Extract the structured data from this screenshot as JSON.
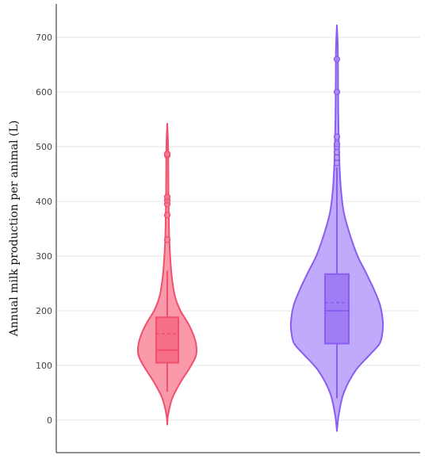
{
  "chart_data": {
    "type": "violin",
    "title": "",
    "xlabel": "",
    "ylabel": "Annual milk production per animal (L)",
    "ylim": [
      -30,
      760
    ],
    "yticks": [
      0,
      100,
      200,
      300,
      400,
      500,
      600,
      700
    ],
    "grid": true,
    "legend": "none",
    "series": [
      {
        "color": "#f0506e",
        "fill": "#f9879a",
        "box_fill": "#f76e87",
        "min": -8,
        "max": 542,
        "whisker_low": 52,
        "whisker_high": 273,
        "q1": 105,
        "median": 128,
        "q3": 188,
        "mean": 158,
        "outliers": [
          330,
          375,
          395,
          402,
          408,
          484,
          487
        ],
        "density": [
          [
            -8,
            0.0
          ],
          [
            10,
            0.03
          ],
          [
            40,
            0.17
          ],
          [
            70,
            0.46
          ],
          [
            95,
            0.76
          ],
          [
            115,
            0.96
          ],
          [
            130,
            1.0
          ],
          [
            150,
            0.93
          ],
          [
            175,
            0.73
          ],
          [
            200,
            0.45
          ],
          [
            225,
            0.27
          ],
          [
            255,
            0.17
          ],
          [
            290,
            0.11
          ],
          [
            330,
            0.07
          ],
          [
            380,
            0.05
          ],
          [
            420,
            0.04
          ],
          [
            470,
            0.035
          ],
          [
            510,
            0.025
          ],
          [
            542,
            0.0
          ]
        ]
      },
      {
        "color": "#8a5cf0",
        "fill": "#b49bfa",
        "box_fill": "#9f7ef5",
        "min": -20,
        "max": 722,
        "whisker_low": 40,
        "whisker_high": 462,
        "q1": 140,
        "median": 200,
        "q3": 267,
        "mean": 215,
        "outliers": [
          470,
          480,
          490,
          500,
          505,
          518,
          600,
          660
        ],
        "density": [
          [
            -20,
            0.0
          ],
          [
            10,
            0.04
          ],
          [
            50,
            0.15
          ],
          [
            90,
            0.4
          ],
          [
            120,
            0.72
          ],
          [
            140,
            0.93
          ],
          [
            160,
            0.99
          ],
          [
            180,
            1.0
          ],
          [
            210,
            0.94
          ],
          [
            240,
            0.8
          ],
          [
            270,
            0.63
          ],
          [
            300,
            0.45
          ],
          [
            340,
            0.28
          ],
          [
            380,
            0.15
          ],
          [
            420,
            0.09
          ],
          [
            460,
            0.06
          ],
          [
            500,
            0.045
          ],
          [
            560,
            0.03
          ],
          [
            620,
            0.025
          ],
          [
            680,
            0.02
          ],
          [
            722,
            0.0
          ]
        ]
      }
    ]
  }
}
